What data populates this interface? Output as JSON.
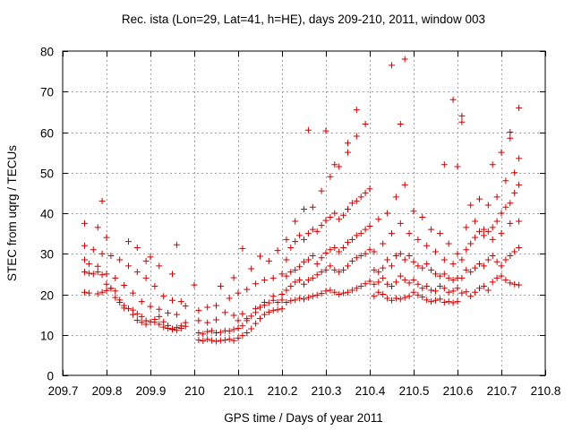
{
  "chart_data": {
    "type": "scatter",
    "title": "Rec. ista (Lon=29, Lat=41, h=HE), days 209-210, 2011, window 003",
    "xlabel": "GPS time / Days of year 2011",
    "ylabel": "STEC from uqrg / TECUs",
    "xlim": [
      209.7,
      210.8
    ],
    "ylim": [
      0,
      80
    ],
    "x_ticks": [
      209.7,
      209.8,
      209.9,
      210.0,
      210.1,
      210.2,
      210.3,
      210.4,
      210.5,
      210.6,
      210.7,
      210.8
    ],
    "x_tick_labels": [
      "209.7",
      "209.8",
      "209.9",
      "210",
      "210.1",
      "210.2",
      "210.3",
      "210.4",
      "210.5",
      "210.6",
      "210.7",
      "210.8"
    ],
    "y_ticks": [
      0,
      10,
      20,
      30,
      40,
      50,
      60,
      70,
      80
    ],
    "y_tick_labels": [
      "0",
      "10",
      "20",
      "30",
      "40",
      "50",
      "60",
      "70",
      "80"
    ],
    "grid": true,
    "marker": "plus",
    "color": "#cc0000",
    "x": [
      209.75,
      209.76,
      209.78,
      209.79,
      209.8,
      209.81,
      209.82,
      209.83,
      209.84,
      209.86,
      209.87,
      209.88,
      209.89,
      209.91,
      209.92,
      209.93,
      209.94,
      209.95,
      209.96,
      209.97,
      209.98,
      209.75,
      209.76,
      209.77,
      209.78,
      209.79,
      209.8,
      209.81,
      209.82,
      209.83,
      209.84,
      209.85,
      209.86,
      209.87,
      209.88,
      209.89,
      209.9,
      209.91,
      209.92,
      209.93,
      209.94,
      209.95,
      209.96,
      209.97,
      209.98,
      209.75,
      209.76,
      209.78,
      209.8,
      209.82,
      209.84,
      209.86,
      209.88,
      209.9,
      209.92,
      209.94,
      209.96,
      209.98,
      209.75,
      209.77,
      209.79,
      209.81,
      209.83,
      209.85,
      209.87,
      209.89,
      209.91,
      209.93,
      209.95,
      209.97,
      209.75,
      209.78,
      209.79,
      209.8,
      209.85,
      209.87,
      209.89,
      209.9,
      209.92,
      209.95,
      209.96,
      210.01,
      210.02,
      210.03,
      210.04,
      210.05,
      210.06,
      210.07,
      210.08,
      210.09,
      210.1,
      210.11,
      210.12,
      210.13,
      210.14,
      210.15,
      210.16,
      210.17,
      210.18,
      210.19,
      210.2,
      210.01,
      210.02,
      210.03,
      210.04,
      210.05,
      210.06,
      210.07,
      210.08,
      210.09,
      210.1,
      210.11,
      210.12,
      210.13,
      210.14,
      210.15,
      210.16,
      210.17,
      210.18,
      210.19,
      210.2,
      210.01,
      210.03,
      210.05,
      210.07,
      210.09,
      210.1,
      210.11,
      210.12,
      210.14,
      210.16,
      210.18,
      210.2,
      210.01,
      210.03,
      210.05,
      210.08,
      210.1,
      210.12,
      210.14,
      210.16,
      210.18,
      210.2,
      210.0,
      210.06,
      210.09,
      210.11,
      210.13,
      210.15,
      210.17,
      210.19,
      210.21,
      210.22,
      210.23,
      210.24,
      210.25,
      210.26,
      210.27,
      210.28,
      210.29,
      210.3,
      210.31,
      210.32,
      210.33,
      210.34,
      210.35,
      210.36,
      210.37,
      210.38,
      210.39,
      210.4,
      210.21,
      210.22,
      210.23,
      210.24,
      210.25,
      210.26,
      210.27,
      210.28,
      210.29,
      210.3,
      210.31,
      210.32,
      210.33,
      210.34,
      210.35,
      210.36,
      210.37,
      210.38,
      210.39,
      210.4,
      210.21,
      210.22,
      210.23,
      210.24,
      210.25,
      210.26,
      210.27,
      210.28,
      210.29,
      210.3,
      210.31,
      210.32,
      210.33,
      210.34,
      210.35,
      210.36,
      210.37,
      210.38,
      210.39,
      210.4,
      210.21,
      210.22,
      210.23,
      210.24,
      210.25,
      210.26,
      210.27,
      210.28,
      210.29,
      210.3,
      210.31,
      210.32,
      210.33,
      210.34,
      210.35,
      210.36,
      210.37,
      210.38,
      210.39,
      210.4,
      210.21,
      210.23,
      210.25,
      210.27,
      210.29,
      210.31,
      210.33,
      210.35,
      210.37,
      210.39,
      210.26,
      210.3,
      210.32,
      210.37,
      210.35,
      210.41,
      210.42,
      210.43,
      210.44,
      210.45,
      210.46,
      210.47,
      210.48,
      210.49,
      210.5,
      210.51,
      210.52,
      210.53,
      210.54,
      210.55,
      210.56,
      210.57,
      210.58,
      210.59,
      210.6,
      210.41,
      210.42,
      210.43,
      210.44,
      210.45,
      210.46,
      210.47,
      210.48,
      210.49,
      210.5,
      210.51,
      210.52,
      210.53,
      210.54,
      210.55,
      210.56,
      210.57,
      210.58,
      210.59,
      210.6,
      210.41,
      210.42,
      210.43,
      210.44,
      210.45,
      210.46,
      210.47,
      210.48,
      210.49,
      210.5,
      210.51,
      210.52,
      210.53,
      210.54,
      210.55,
      210.56,
      210.57,
      210.58,
      210.59,
      210.6,
      210.41,
      210.43,
      210.45,
      210.47,
      210.49,
      210.51,
      210.53,
      210.55,
      210.57,
      210.59,
      210.42,
      210.44,
      210.46,
      210.48,
      210.5,
      210.52,
      210.54,
      210.56,
      210.58,
      210.6,
      210.45,
      210.48,
      210.47,
      210.59,
      210.6,
      210.61,
      210.61,
      210.57,
      210.61,
      210.62,
      210.63,
      210.64,
      210.65,
      210.66,
      210.67,
      210.68,
      210.69,
      210.7,
      210.71,
      210.72,
      210.73,
      210.74,
      210.61,
      210.62,
      210.63,
      210.64,
      210.65,
      210.66,
      210.67,
      210.68,
      210.69,
      210.7,
      210.71,
      210.72,
      210.73,
      210.74,
      210.61,
      210.62,
      210.63,
      210.64,
      210.65,
      210.66,
      210.67,
      210.68,
      210.69,
      210.7,
      210.71,
      210.72,
      210.73,
      210.74,
      210.62,
      210.64,
      210.66,
      210.68,
      210.7,
      210.72,
      210.74,
      210.63,
      210.65,
      210.67,
      210.69,
      210.71,
      210.73,
      210.68,
      210.7,
      210.72,
      210.74,
      210.72,
      210.74
    ],
    "y": [
      20.5,
      20.3,
      20.1,
      20.5,
      20.9,
      21.4,
      19.2,
      18.0,
      16.6,
      15.0,
      13.6,
      13.1,
      12.6,
      13.1,
      12.6,
      11.9,
      11.6,
      11.3,
      11.1,
      11.6,
      12.1,
      25.5,
      25.2,
      25.0,
      25.5,
      24.8,
      22.5,
      21.5,
      20.8,
      18.6,
      17.2,
      16.5,
      16.1,
      15.2,
      14.5,
      13.5,
      13.2,
      13.8,
      14.5,
      13.2,
      12.3,
      11.5,
      11.8,
      12.2,
      13.0,
      28.5,
      27.5,
      26.9,
      25.0,
      24.0,
      22.2,
      20.3,
      18.2,
      17.0,
      16.3,
      15.4,
      15.0,
      17.1,
      32.0,
      31.0,
      30.0,
      29.5,
      28.5,
      27.0,
      25.5,
      24.0,
      22.0,
      19.5,
      18.5,
      18.2,
      37.5,
      36.5,
      43.0,
      34.0,
      33.0,
      31.5,
      28.2,
      29.2,
      27.0,
      25.0,
      32.2,
      8.7,
      8.5,
      8.9,
      8.6,
      8.4,
      8.6,
      8.7,
      8.9,
      8.6,
      9.2,
      9.8,
      10.5,
      11.5,
      12.8,
      14.0,
      15.0,
      15.6,
      16.0,
      16.2,
      16.4,
      10.5,
      10.2,
      10.8,
      11.0,
      10.5,
      10.6,
      11.0,
      10.9,
      11.3,
      11.6,
      12.2,
      13.5,
      14.6,
      15.5,
      16.8,
      17.3,
      17.9,
      18.5,
      18.0,
      18.6,
      13.5,
      13.0,
      13.7,
      15.5,
      14.8,
      13.5,
      15.2,
      14.0,
      16.5,
      18.0,
      19.5,
      20.0,
      16.0,
      16.8,
      17.2,
      19.0,
      20.3,
      21.2,
      22.6,
      23.5,
      24.0,
      25.0,
      22.3,
      22.0,
      24.1,
      31.3,
      26.3,
      29.4,
      28.2,
      30.8,
      18.0,
      18.4,
      18.6,
      19.0,
      18.8,
      19.2,
      19.5,
      19.8,
      20.2,
      20.8,
      21.0,
      20.5,
      20.0,
      20.3,
      20.5,
      21.0,
      21.5,
      22.0,
      22.6,
      23.2,
      21.0,
      22.0,
      23.0,
      23.5,
      22.5,
      23.5,
      24.0,
      24.8,
      25.5,
      26.0,
      27.0,
      26.0,
      25.5,
      26.0,
      27.0,
      28.2,
      29.0,
      29.5,
      30.0,
      31.0,
      24.5,
      25.5,
      26.0,
      26.8,
      28.0,
      28.5,
      29.5,
      27.5,
      29.0,
      30.2,
      31.0,
      31.5,
      30.5,
      31.5,
      32.8,
      33.5,
      34.5,
      35.0,
      36.0,
      36.8,
      28.5,
      31.5,
      33.0,
      34.5,
      33.5,
      35.0,
      36.0,
      35.5,
      37.0,
      38.2,
      39.0,
      40.0,
      38.5,
      39.5,
      41.0,
      42.5,
      43.0,
      44.0,
      45.0,
      46.0,
      33.5,
      38.0,
      41.0,
      41.5,
      45.5,
      49.0,
      51.5,
      55.0,
      59.0,
      62.0,
      60.5,
      60.3,
      52.0,
      65.5,
      57.3,
      19.5,
      20.5,
      20.0,
      19.0,
      18.5,
      19.0,
      18.8,
      19.2,
      19.5,
      20.5,
      19.8,
      19.3,
      18.6,
      18.2,
      18.5,
      18.8,
      18.0,
      18.2,
      17.9,
      18.2,
      22.5,
      23.0,
      24.0,
      22.5,
      22.0,
      23.0,
      24.5,
      23.5,
      22.8,
      23.5,
      22.5,
      21.5,
      22.0,
      21.0,
      20.8,
      22.0,
      21.5,
      20.5,
      20.8,
      21.5,
      26.0,
      25.5,
      26.5,
      28.5,
      27.0,
      29.5,
      30.0,
      28.5,
      29.5,
      28.0,
      27.0,
      26.5,
      27.5,
      26.0,
      25.0,
      24.5,
      25.0,
      24.0,
      23.5,
      24.0,
      30.5,
      32.5,
      35.0,
      37.5,
      35.0,
      33.5,
      32.0,
      30.5,
      28.5,
      27.5,
      38.5,
      40.0,
      44.0,
      47.0,
      40.5,
      39.0,
      36.0,
      35.0,
      32.5,
      30.0,
      76.5,
      78.0,
      62.0,
      68.0,
      51.5,
      62.5,
      64.0,
      52.0,
      20.3,
      20.6,
      19.5,
      20.5,
      21.5,
      22.0,
      21.0,
      23.0,
      24.0,
      24.5,
      23.5,
      22.8,
      22.5,
      22.3,
      24.0,
      26.0,
      25.5,
      26.5,
      27.5,
      27.0,
      28.5,
      29.5,
      28.0,
      27.0,
      28.5,
      29.5,
      30.5,
      31.5,
      28.5,
      31.0,
      32.5,
      34.0,
      35.5,
      34.5,
      35.5,
      36.5,
      38.0,
      40.0,
      41.5,
      42.5,
      45.0,
      47.0,
      36.5,
      38.0,
      36.0,
      33.5,
      35.0,
      37.5,
      38.0,
      42.0,
      43.5,
      42.0,
      44.0,
      48.0,
      50.0,
      52.0,
      55.0,
      58.5,
      53.5,
      60.0,
      66.0
    ]
  }
}
